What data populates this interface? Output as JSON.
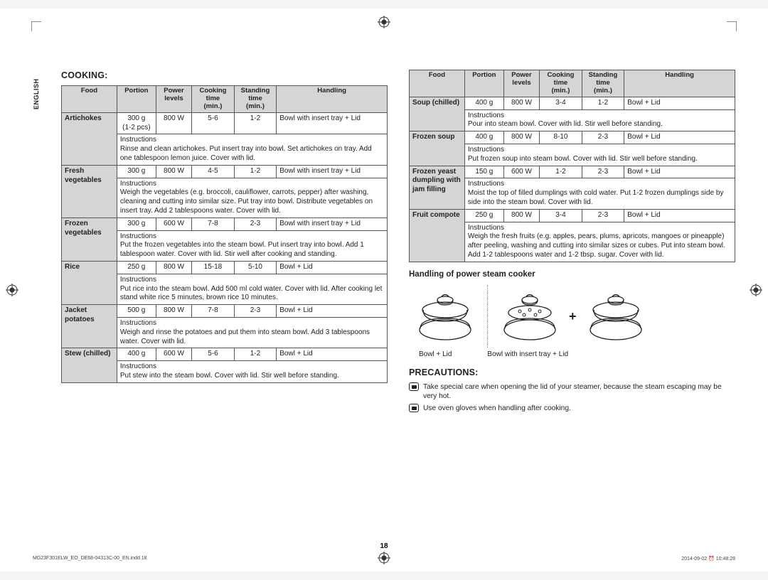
{
  "meta": {
    "lang_tab": "ENGLISH",
    "page_num": "18",
    "foot_left": "MG23F301ELW_EO_DE68-04313C-00_EN.indd   18",
    "foot_right": "2014-09-02   ⏰ 10:48:28"
  },
  "sections": {
    "cooking": "COOKING:",
    "handling_header": "Handling of power steam cooker",
    "precautions": "PRECAUTIONS:"
  },
  "table": {
    "headers": [
      "Food",
      "Portion",
      "Power\nlevels",
      "Cooking\ntime\n(min.)",
      "Standing\ntime\n(min.)",
      "Handling"
    ],
    "col_widths_pct": [
      17,
      12,
      11,
      13,
      13,
      34
    ],
    "header_bg": "#d5d5d5",
    "border_color": "#555555"
  },
  "left_rows": [
    {
      "food": "Artichokes",
      "portion": "300 g\n(1-2 pcs)",
      "power": "800 W",
      "cook": "5-6",
      "stand": "1-2",
      "handling": "Bowl with insert tray + Lid",
      "instr": "Rinse and clean artichokes. Put insert tray into bowl. Set artichokes on tray. Add one tablespoon lemon juice. Cover with lid."
    },
    {
      "food": "Fresh vegetables",
      "portion": "300 g",
      "power": "800 W",
      "cook": "4-5",
      "stand": "1-2",
      "handling": "Bowl with insert tray + Lid",
      "instr": "Weigh the vegetables (e.g. broccoli, cauliflower, carrots, pepper) after washing, cleaning and cutting into similar size. Put tray into bowl. Distribute vegetables on insert tray. Add 2 tablespoons water. Cover with lid."
    },
    {
      "food": "Frozen vegetables",
      "portion": "300 g",
      "power": "600 W",
      "cook": "7-8",
      "stand": "2-3",
      "handling": "Bowl with insert tray + Lid",
      "instr": "Put the frozen vegetables into the steam bowl. Put insert tray into bowl. Add 1 tablespoon water. Cover with lid. Stir well after cooking and standing."
    },
    {
      "food": "Rice",
      "portion": "250 g",
      "power": "800 W",
      "cook": "15-18",
      "stand": "5-10",
      "handling": "Bowl + Lid",
      "instr": "Put rice into the steam bowl. Add 500 ml cold water. Cover with lid. After cooking let stand white rice 5 minutes, brown rice 10 minutes."
    },
    {
      "food": "Jacket potatoes",
      "portion": "500 g",
      "power": "800 W",
      "cook": "7-8",
      "stand": "2-3",
      "handling": "Bowl + Lid",
      "instr": "Weigh and rinse the potatoes and put them into steam bowl. Add 3 tablespoons water. Cover with lid."
    },
    {
      "food": "Stew (chilled)",
      "portion": "400 g",
      "power": "600 W",
      "cook": "5-6",
      "stand": "1-2",
      "handling": "Bowl + Lid",
      "instr": "Put stew into the steam bowl. Cover with lid. Stir well before standing."
    }
  ],
  "right_rows": [
    {
      "food": "Soup (chilled)",
      "portion": "400 g",
      "power": "800 W",
      "cook": "3-4",
      "stand": "1-2",
      "handling": "Bowl + Lid",
      "instr": "Pour into steam bowl. Cover with lid. Stir well before standing."
    },
    {
      "food": "Frozen soup",
      "portion": "400 g",
      "power": "800 W",
      "cook": "8-10",
      "stand": "2-3",
      "handling": "Bowl + Lid",
      "instr": "Put frozen soup into steam bowl. Cover with lid. Stir well before standing."
    },
    {
      "food": "Frozen yeast dumpling with jam filling",
      "portion": "150 g",
      "power": "600 W",
      "cook": "1-2",
      "stand": "2-3",
      "handling": "Bowl + Lid",
      "instr": "Moist the top of filled dumplings with cold water. Put 1-2 frozen dumplings side by side into the steam bowl. Cover with lid."
    },
    {
      "food": "Fruit compote",
      "portion": "250 g",
      "power": "800 W",
      "cook": "3-4",
      "stand": "2-3",
      "handling": "Bowl + Lid",
      "instr": "Weigh the fresh fruits (e.g. apples, pears, plums, apricots, mangoes or pineapple) after peeling, washing and cutting into similar sizes or cubes. Put into steam bowl. Add 1-2 tablespoons water and 1-2 tbsp. sugar. Cover with lid."
    }
  ],
  "instructions_label": "Instructions",
  "diagram": {
    "caption_left": "Bowl + Lid",
    "caption_right": "Bowl with insert tray + Lid",
    "plus": "+"
  },
  "precaution_items": [
    "Take special care when opening the lid of your steamer, because the steam escaping may be very hot.",
    "Use oven gloves when handling after cooking."
  ]
}
